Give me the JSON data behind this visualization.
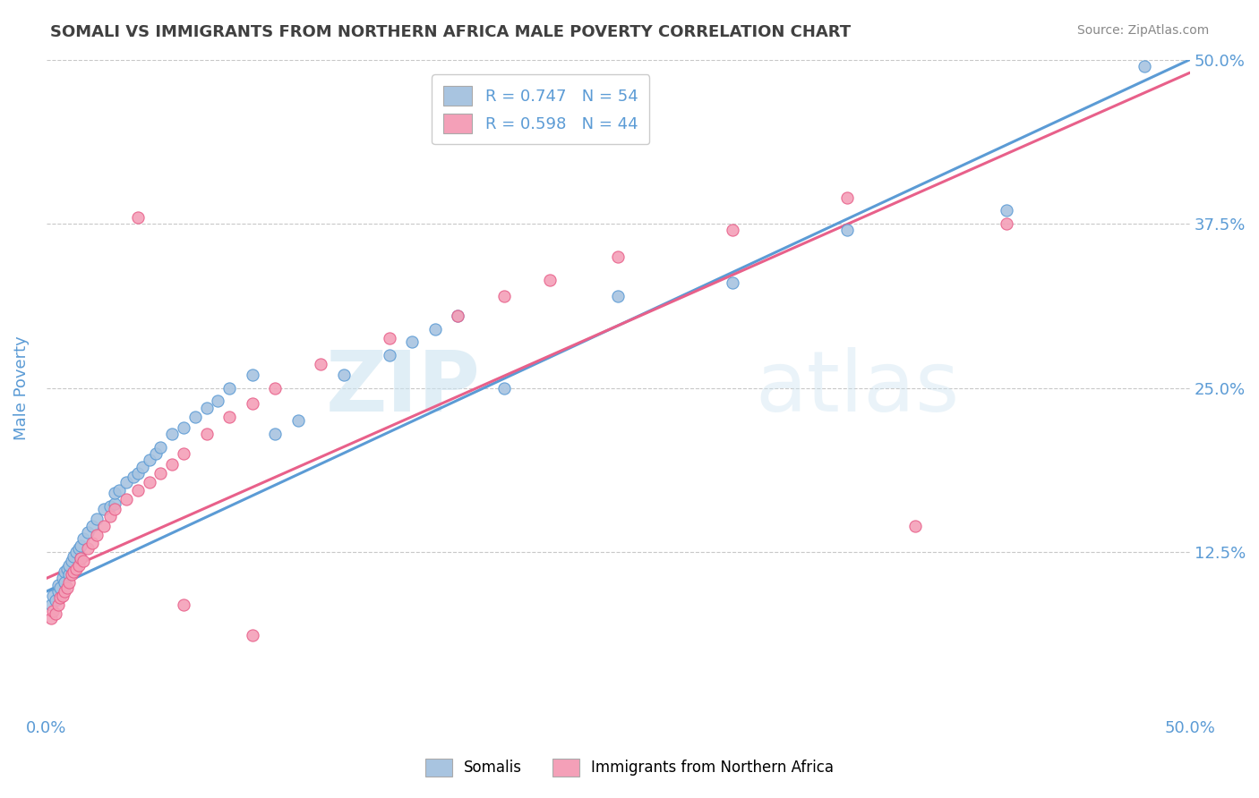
{
  "title": "SOMALI VS IMMIGRANTS FROM NORTHERN AFRICA MALE POVERTY CORRELATION CHART",
  "source": "Source: ZipAtlas.com",
  "xlabel": "",
  "ylabel": "Male Poverty",
  "xlim": [
    0.0,
    0.5
  ],
  "ylim": [
    0.0,
    0.5
  ],
  "watermark": "ZIPatlas",
  "legend_r1": "R = 0.747   N = 54",
  "legend_r2": "R = 0.598   N = 44",
  "somali_color": "#a8c4e0",
  "northern_africa_color": "#f4a0b8",
  "somali_line_color": "#5b9bd5",
  "northern_africa_line_color": "#e8608a",
  "title_color": "#404040",
  "axis_label_color": "#5b9bd5",
  "tick_label_color": "#5b9bd5",
  "somali_line_x0": 0.0,
  "somali_line_y0": 0.095,
  "somali_line_x1": 0.5,
  "somali_line_y1": 0.5,
  "na_line_x0": 0.0,
  "na_line_y0": 0.105,
  "na_line_x1": 0.5,
  "na_line_y1": 0.49,
  "somali_scatter_x": [
    0.002,
    0.003,
    0.004,
    0.005,
    0.005,
    0.006,
    0.007,
    0.008,
    0.008,
    0.009,
    0.01,
    0.01,
    0.011,
    0.012,
    0.013,
    0.014,
    0.015,
    0.015,
    0.016,
    0.018,
    0.02,
    0.022,
    0.025,
    0.028,
    0.03,
    0.03,
    0.032,
    0.035,
    0.038,
    0.04,
    0.042,
    0.045,
    0.048,
    0.05,
    0.055,
    0.06,
    0.065,
    0.07,
    0.075,
    0.08,
    0.09,
    0.1,
    0.11,
    0.13,
    0.15,
    0.16,
    0.17,
    0.18,
    0.2,
    0.25,
    0.3,
    0.35,
    0.42,
    0.48
  ],
  "somali_scatter_y": [
    0.085,
    0.092,
    0.088,
    0.095,
    0.1,
    0.098,
    0.105,
    0.11,
    0.102,
    0.112,
    0.108,
    0.115,
    0.118,
    0.122,
    0.125,
    0.128,
    0.13,
    0.12,
    0.135,
    0.14,
    0.145,
    0.15,
    0.158,
    0.16,
    0.162,
    0.17,
    0.172,
    0.178,
    0.182,
    0.185,
    0.19,
    0.195,
    0.2,
    0.205,
    0.215,
    0.22,
    0.228,
    0.235,
    0.24,
    0.25,
    0.26,
    0.215,
    0.225,
    0.26,
    0.275,
    0.285,
    0.295,
    0.305,
    0.25,
    0.32,
    0.33,
    0.37,
    0.385,
    0.495
  ],
  "na_scatter_x": [
    0.002,
    0.003,
    0.004,
    0.005,
    0.006,
    0.007,
    0.008,
    0.009,
    0.01,
    0.011,
    0.012,
    0.013,
    0.014,
    0.015,
    0.016,
    0.018,
    0.02,
    0.022,
    0.025,
    0.028,
    0.03,
    0.035,
    0.04,
    0.045,
    0.05,
    0.055,
    0.06,
    0.07,
    0.08,
    0.09,
    0.1,
    0.12,
    0.15,
    0.18,
    0.2,
    0.22,
    0.25,
    0.3,
    0.35,
    0.38,
    0.04,
    0.06,
    0.09,
    0.42
  ],
  "na_scatter_y": [
    0.075,
    0.08,
    0.078,
    0.085,
    0.09,
    0.092,
    0.095,
    0.098,
    0.102,
    0.108,
    0.11,
    0.112,
    0.115,
    0.12,
    0.118,
    0.128,
    0.132,
    0.138,
    0.145,
    0.152,
    0.158,
    0.165,
    0.172,
    0.178,
    0.185,
    0.192,
    0.2,
    0.215,
    0.228,
    0.238,
    0.25,
    0.268,
    0.288,
    0.305,
    0.32,
    0.332,
    0.35,
    0.37,
    0.395,
    0.145,
    0.38,
    0.085,
    0.062,
    0.375
  ]
}
